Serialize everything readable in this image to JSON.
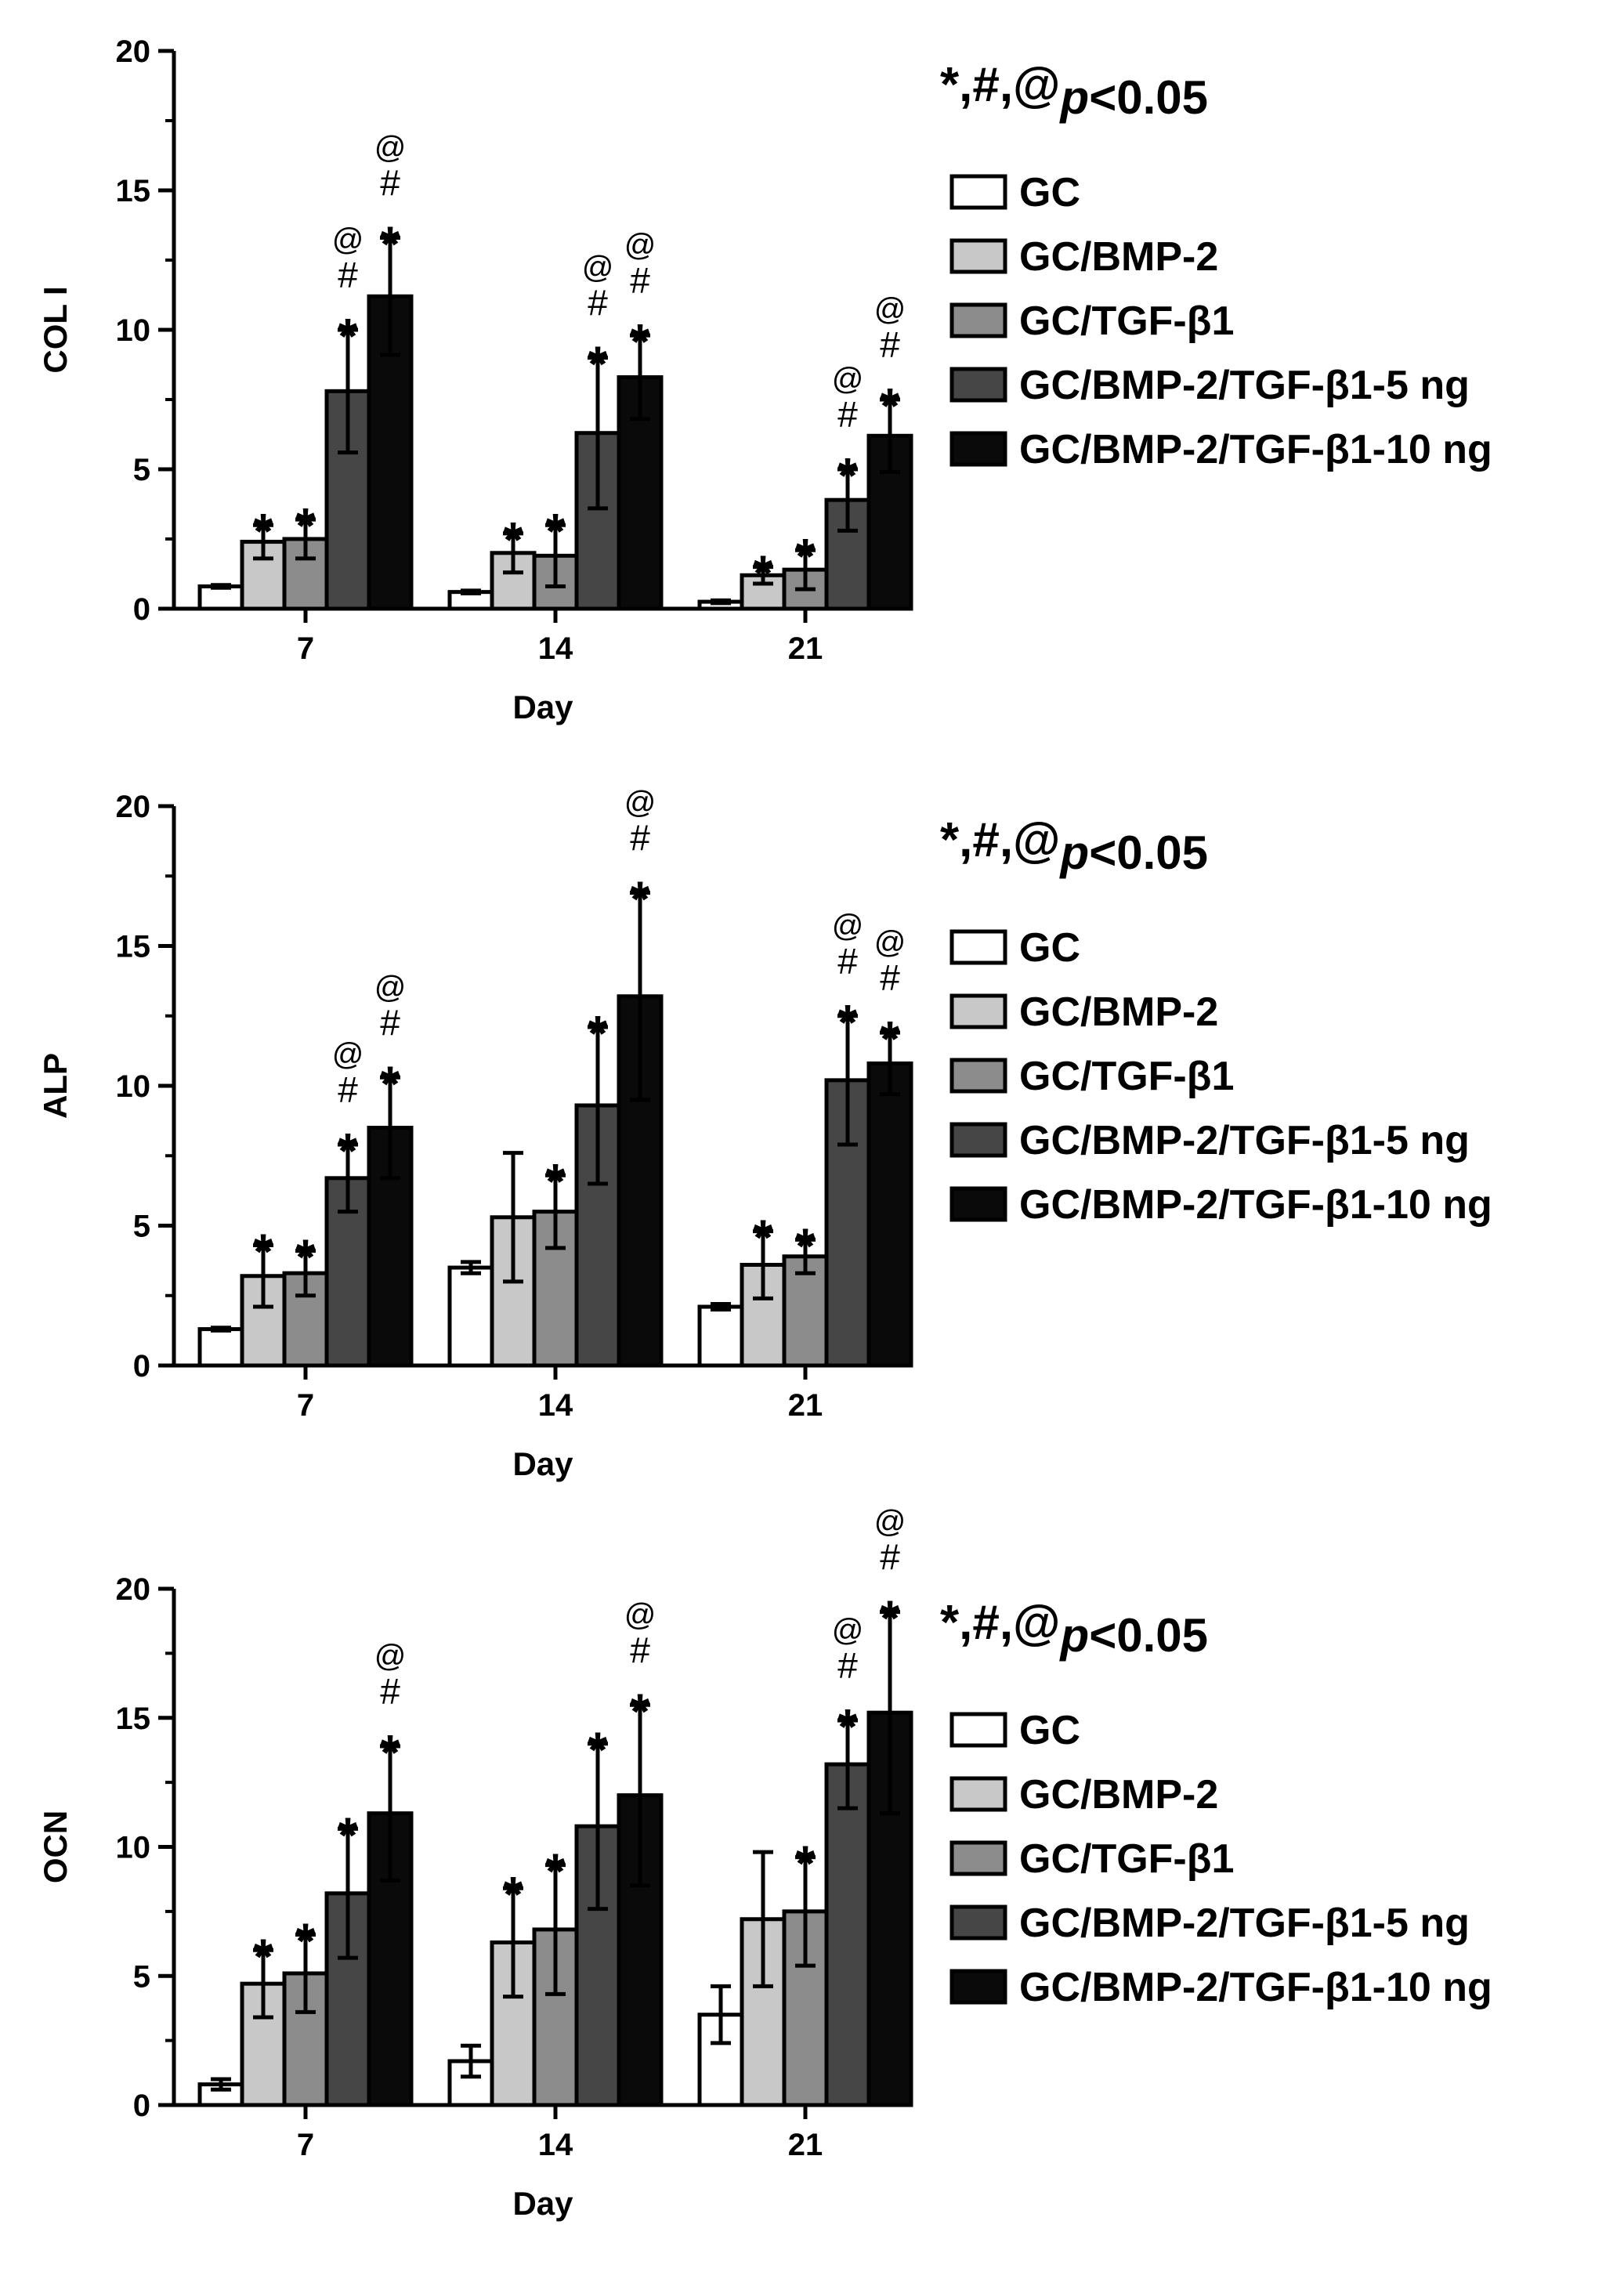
{
  "colors": {
    "GC": "#ffffff",
    "GC/BMP-2": "#c8c8c8",
    "GC/TGF-β1": "#8c8c8c",
    "GC/BMP-2/TGF-β1-5 ng": "#464646",
    "GC/BMP-2/TGF-β1-10 ng": "#0a0a0a"
  },
  "chart_data": [
    {
      "type": "bar",
      "ylabel": "COL I",
      "xlabel": "Day",
      "ylim": [
        0,
        20
      ],
      "yticks": [
        "0",
        "5",
        "10",
        "15",
        "20"
      ],
      "categories": [
        "7",
        "14",
        "21"
      ],
      "significance_label": {
        "symbols": "*,#,@",
        "p": "p",
        "rest": "<0.05"
      },
      "series": [
        {
          "name": "GC",
          "values": [
            0.8,
            0.6,
            0.25
          ],
          "errors": [
            0.05,
            0.05,
            0.05
          ],
          "marks": [
            "",
            "",
            ""
          ]
        },
        {
          "name": "GC/BMP-2",
          "values": [
            2.4,
            2.0,
            1.2
          ],
          "errors": [
            0.6,
            0.7,
            0.3
          ],
          "marks": [
            "*",
            "*",
            "*"
          ]
        },
        {
          "name": "GC/TGF-β1",
          "values": [
            2.5,
            1.9,
            1.4
          ],
          "errors": [
            0.7,
            1.1,
            0.7
          ],
          "marks": [
            "*",
            "*",
            "*"
          ]
        },
        {
          "name": "GC/BMP-2/TGF-β1-5 ng",
          "values": [
            7.8,
            6.3,
            3.9
          ],
          "errors": [
            2.2,
            2.7,
            1.1
          ],
          "marks": [
            "*#@",
            "*#@",
            "*#@"
          ]
        },
        {
          "name": "GC/BMP-2/TGF-β1-10 ng",
          "values": [
            11.2,
            8.3,
            6.2
          ],
          "errors": [
            2.1,
            1.5,
            1.3
          ],
          "marks": [
            "*#@",
            "*#@",
            "*#@"
          ]
        }
      ]
    },
    {
      "type": "bar",
      "ylabel": "ALP",
      "xlabel": "Day",
      "ylim": [
        0,
        20
      ],
      "yticks": [
        "0",
        "5",
        "10",
        "15",
        "20"
      ],
      "categories": [
        "7",
        "14",
        "21"
      ],
      "significance_label": {
        "symbols": "*,#,@",
        "p": "p",
        "rest": "<0.05"
      },
      "series": [
        {
          "name": "GC",
          "values": [
            1.3,
            3.5,
            2.1
          ],
          "errors": [
            0.05,
            0.2,
            0.1
          ],
          "marks": [
            "",
            "",
            ""
          ]
        },
        {
          "name": "GC/BMP-2",
          "values": [
            3.2,
            5.3,
            3.6
          ],
          "errors": [
            1.1,
            2.3,
            1.2
          ],
          "marks": [
            "*",
            "",
            "*"
          ]
        },
        {
          "name": "GC/TGF-β1",
          "values": [
            3.3,
            5.5,
            3.9
          ],
          "errors": [
            0.8,
            1.3,
            0.6
          ],
          "marks": [
            "*",
            "*",
            "*"
          ]
        },
        {
          "name": "GC/BMP-2/TGF-β1-5 ng",
          "values": [
            6.7,
            9.3,
            10.2
          ],
          "errors": [
            1.2,
            2.8,
            2.3
          ],
          "marks": [
            "*#@",
            "*",
            "*#@"
          ]
        },
        {
          "name": "GC/BMP-2/TGF-β1-10 ng",
          "values": [
            8.5,
            13.2,
            10.8
          ],
          "errors": [
            1.8,
            3.7,
            1.1
          ],
          "marks": [
            "*#@",
            "*#@",
            "*#@"
          ]
        }
      ]
    },
    {
      "type": "bar",
      "ylabel": "OCN",
      "xlabel": "Day",
      "ylim": [
        0,
        20
      ],
      "yticks": [
        "0",
        "5",
        "10",
        "15",
        "20"
      ],
      "categories": [
        "7",
        "14",
        "21"
      ],
      "significance_label": {
        "symbols": "*,#,@",
        "p": "p",
        "rest": "<0.05"
      },
      "series": [
        {
          "name": "GC",
          "values": [
            0.8,
            1.7,
            3.5
          ],
          "errors": [
            0.2,
            0.6,
            1.1
          ],
          "marks": [
            "",
            "",
            ""
          ]
        },
        {
          "name": "GC/BMP-2",
          "values": [
            4.7,
            6.3,
            7.2
          ],
          "errors": [
            1.3,
            2.1,
            2.6
          ],
          "marks": [
            "*",
            "*",
            ""
          ]
        },
        {
          "name": "GC/TGF-β1",
          "values": [
            5.1,
            6.8,
            7.5
          ],
          "errors": [
            1.5,
            2.5,
            2.1
          ],
          "marks": [
            "*",
            "*",
            "*"
          ]
        },
        {
          "name": "GC/BMP-2/TGF-β1-5 ng",
          "values": [
            8.2,
            10.8,
            13.2
          ],
          "errors": [
            2.5,
            3.2,
            1.7
          ],
          "marks": [
            "*",
            "*",
            "*#@"
          ]
        },
        {
          "name": "GC/BMP-2/TGF-β1-10 ng",
          "values": [
            11.3,
            12.0,
            15.2
          ],
          "errors": [
            2.6,
            3.5,
            3.9
          ],
          "marks": [
            "*#@",
            "*#@",
            "*#@"
          ]
        }
      ]
    }
  ]
}
